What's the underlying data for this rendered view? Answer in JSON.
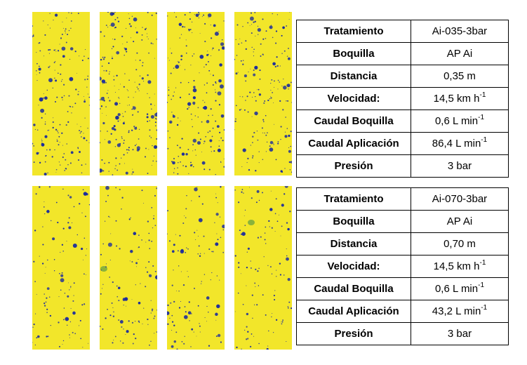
{
  "colors": {
    "card_yellow": "#f2e62a",
    "droplet_blue": "#1a2a9e",
    "stain_green": "#6fa640"
  },
  "cards": {
    "top": [
      {
        "name": "card-1",
        "density": 190
      },
      {
        "name": "card-2",
        "density": 230
      },
      {
        "name": "card-3",
        "density": 200
      },
      {
        "name": "card-4",
        "density": 180
      }
    ],
    "bottom": [
      {
        "name": "card-5",
        "density": 110
      },
      {
        "name": "card-6",
        "density": 120
      },
      {
        "name": "card-7",
        "density": 115
      },
      {
        "name": "card-8",
        "density": 110
      }
    ]
  },
  "table_top": {
    "rows": [
      {
        "label": "Tratamiento",
        "value": "Ai-035-3bar",
        "sup": ""
      },
      {
        "label": "Boquilla",
        "value": "AP Ai",
        "sup": ""
      },
      {
        "label": "Distancia",
        "value": "0,35 m",
        "sup": ""
      },
      {
        "label": "Velocidad:",
        "value": "14,5 km h",
        "sup": "-1"
      },
      {
        "label": "Caudal Boquilla",
        "value": "0,6 L min",
        "sup": "-1"
      },
      {
        "label": "Caudal Aplicación",
        "value": "86,4 L min",
        "sup": "-1"
      },
      {
        "label": "Presión",
        "value": "3 bar",
        "sup": ""
      }
    ]
  },
  "table_bottom": {
    "rows": [
      {
        "label": "Tratamiento",
        "value": "Ai-070-3bar",
        "sup": ""
      },
      {
        "label": "Boquilla",
        "value": "AP Ai",
        "sup": ""
      },
      {
        "label": "Distancia",
        "value": "0,70 m",
        "sup": ""
      },
      {
        "label": "Velocidad:",
        "value": "14,5 km h",
        "sup": "-1"
      },
      {
        "label": "Caudal Boquilla",
        "value": "0,6 L min",
        "sup": "-1"
      },
      {
        "label": "Caudal Aplicación",
        "value": "43,2 L min",
        "sup": "-1"
      },
      {
        "label": "Presión",
        "value": "3 bar",
        "sup": ""
      }
    ]
  }
}
